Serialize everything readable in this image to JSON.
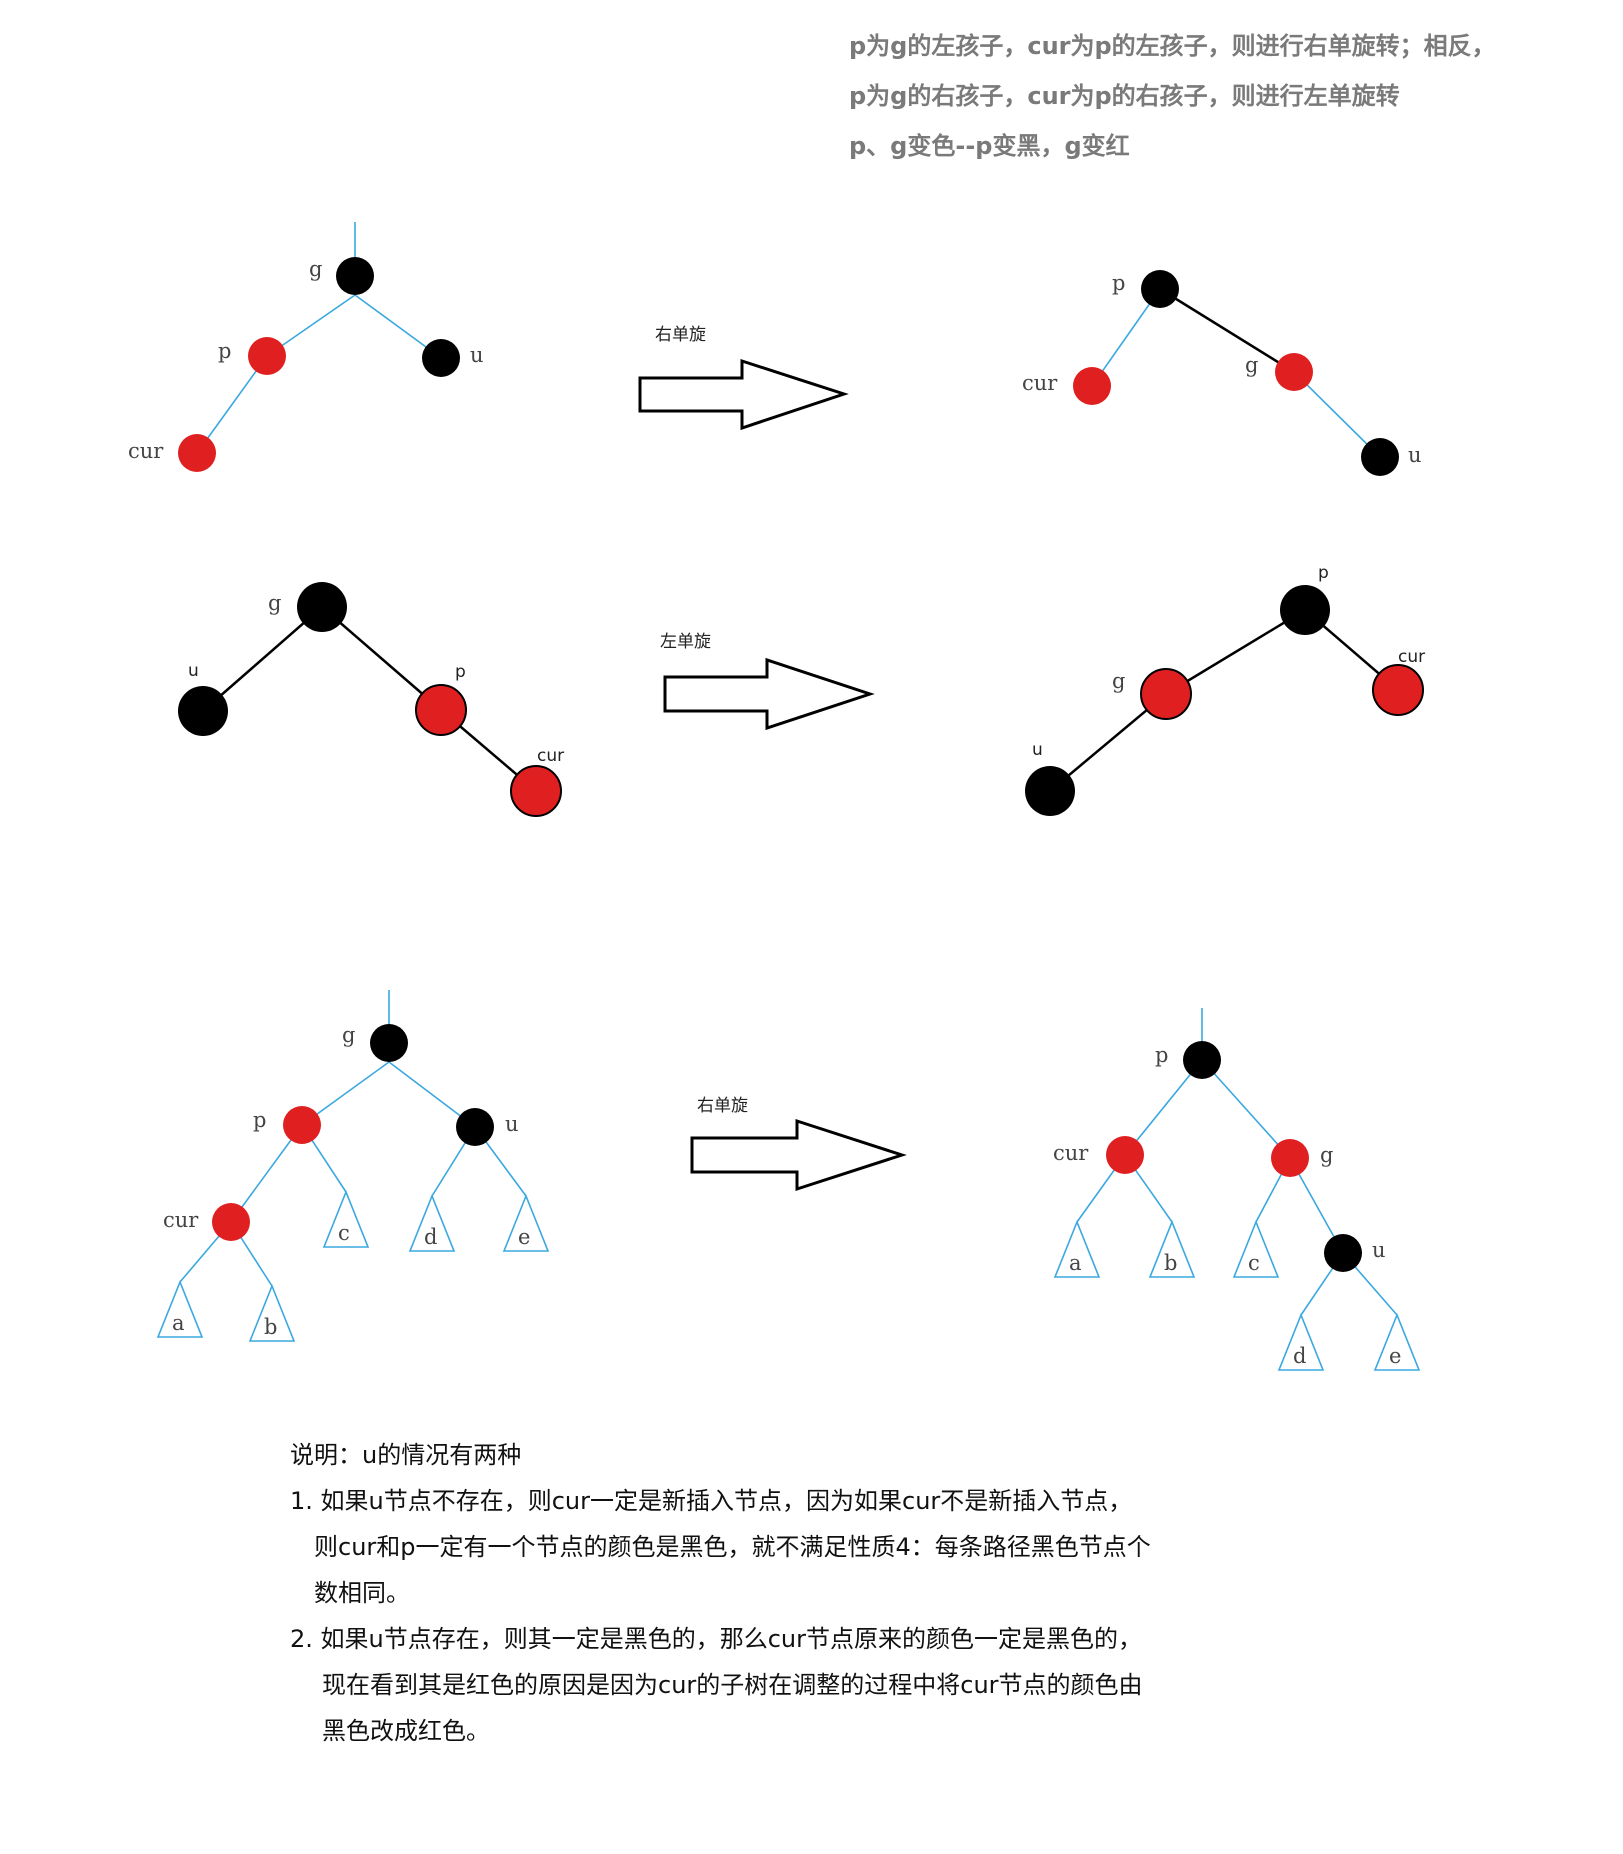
{
  "colors": {
    "black_node": "#000000",
    "red_node": "#e02020",
    "blue_edge": "#3aa8e0",
    "black_edge": "#000000",
    "header_text": "#7a7a7a"
  },
  "header": {
    "line1": "p为g的左孩子，cur为p的左孩子，则进行右单旋转；相反，",
    "line2": "p为g的右孩子，cur为p的右孩子，则进行左单旋转",
    "line3": "p、g变色--p变黑，g变红"
  },
  "diagram1": {
    "arrow_label": "右单旋",
    "before": {
      "g": "g",
      "p": "p",
      "u": "u",
      "cur": "cur"
    },
    "after": {
      "p": "p",
      "cur": "cur",
      "g": "g",
      "u": "u"
    }
  },
  "diagram2": {
    "arrow_label": "左单旋",
    "before": {
      "g": "g",
      "u": "u",
      "p": "p",
      "cur": "cur"
    },
    "after": {
      "p": "p",
      "g": "g",
      "cur": "cur",
      "u": "u"
    }
  },
  "diagram3": {
    "arrow_label": "右单旋",
    "before": {
      "g": "g",
      "p": "p",
      "u": "u",
      "cur": "cur",
      "a": "a",
      "b": "b",
      "c": "c",
      "d": "d",
      "e": "e"
    },
    "after": {
      "p": "p",
      "cur": "cur",
      "g": "g",
      "u": "u",
      "a": "a",
      "b": "b",
      "c": "c",
      "d": "d",
      "e": "e"
    }
  },
  "notes": {
    "title": "说明：u的情况有两种",
    "item1_line1": "1. 如果u节点不存在，则cur一定是新插入节点，因为如果cur不是新插入节点，",
    "item1_line2": "则cur和p一定有一个节点的颜色是黑色，就不满足性质4：每条路径黑色节点个",
    "item1_line3": "数相同。",
    "item2_line1": "2. 如果u节点存在，则其一定是黑色的，那么cur节点原来的颜色一定是黑色的，",
    "item2_line2": "现在看到其是红色的原因是因为cur的子树在调整的过程中将cur节点的颜色由",
    "item2_line3": "黑色改成红色。"
  }
}
